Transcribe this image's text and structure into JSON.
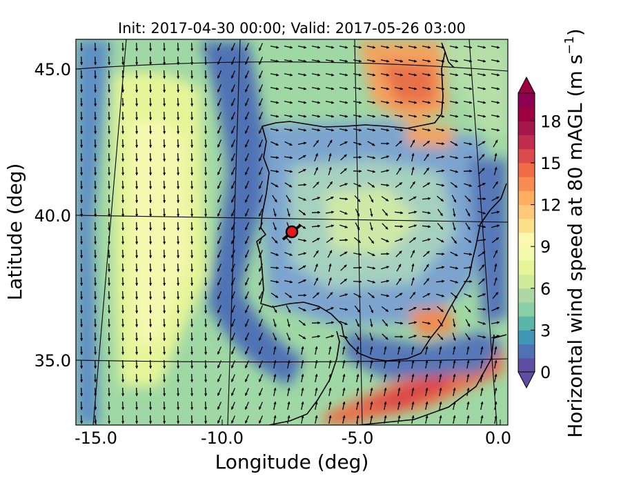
{
  "title": "Init: 2017-04-30 00:00; Valid: 2017-05-26 03:00",
  "x_axis": {
    "label": "Longitude (deg)",
    "ticks": [
      {
        "value": -15.0,
        "label": "-15.0"
      },
      {
        "value": -10.0,
        "label": "-10.0"
      },
      {
        "value": -5.0,
        "label": "-5.0"
      },
      {
        "value": 0.0,
        "label": "0.0"
      }
    ]
  },
  "y_axis": {
    "label": "Latitude (deg)",
    "ticks": [
      {
        "value": 45.0,
        "label": "45.0"
      },
      {
        "value": 40.0,
        "label": "40.0"
      },
      {
        "value": 35.0,
        "label": "35.0"
      }
    ]
  },
  "colorbar": {
    "label": "Horizontal wind speed at 80 mAGL (m s",
    "label_exponent": "−1",
    "label_close": ")",
    "min": 0,
    "max": 20,
    "step": 1,
    "extend": "both",
    "ticks": [
      {
        "value": 0,
        "label": "0"
      },
      {
        "value": 3,
        "label": "3"
      },
      {
        "value": 6,
        "label": "6"
      },
      {
        "value": 9,
        "label": "9"
      },
      {
        "value": 12,
        "label": "12"
      },
      {
        "value": 15,
        "label": "15"
      },
      {
        "value": 18,
        "label": "18"
      }
    ],
    "colormap": "Spectral_r"
  },
  "map": {
    "projection": "lambert-conformal",
    "region": "Iberian Peninsula",
    "extent": {
      "lon": [
        -15.8,
        0.2
      ],
      "lat": [
        33.0,
        45.8
      ]
    },
    "marker": {
      "lon": -7.6,
      "lat": 39.2,
      "color": "#e41a1c"
    }
  }
}
